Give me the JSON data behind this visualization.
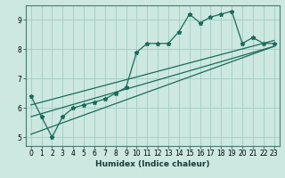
{
  "xlabel": "Humidex (Indice chaleur)",
  "bg_color": "#cce8e0",
  "line_color": "#1a6b5a",
  "grid_color": "#a8d0c8",
  "xlim": [
    -0.5,
    23.5
  ],
  "ylim": [
    4.7,
    9.5
  ],
  "yticks": [
    5,
    6,
    7,
    8,
    9
  ],
  "xticks": [
    0,
    1,
    2,
    3,
    4,
    5,
    6,
    7,
    8,
    9,
    10,
    11,
    12,
    13,
    14,
    15,
    16,
    17,
    18,
    19,
    20,
    21,
    22,
    23
  ],
  "data_x": [
    0,
    1,
    2,
    3,
    4,
    5,
    6,
    7,
    8,
    9,
    10,
    11,
    12,
    13,
    14,
    15,
    16,
    17,
    18,
    19,
    20,
    21,
    22,
    23
  ],
  "data_y": [
    6.4,
    5.7,
    5.0,
    5.7,
    6.0,
    6.1,
    6.2,
    6.3,
    6.5,
    6.7,
    7.9,
    8.2,
    8.2,
    8.2,
    8.6,
    9.2,
    8.9,
    9.1,
    9.2,
    9.3,
    8.2,
    8.4,
    8.2,
    8.2
  ],
  "trend1_x": [
    0,
    23
  ],
  "trend1_y": [
    6.1,
    8.3
  ],
  "trend2_x": [
    0,
    23
  ],
  "trend2_y": [
    5.7,
    8.1
  ],
  "trend3_x": [
    0,
    23
  ],
  "trend3_y": [
    5.1,
    8.1
  ]
}
